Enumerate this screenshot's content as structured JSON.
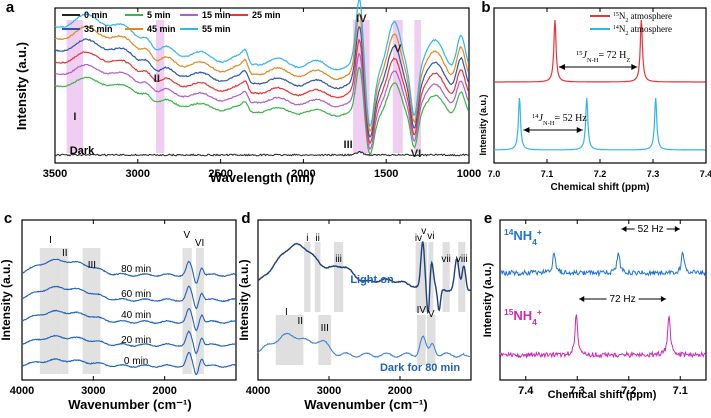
{
  "panels": {
    "a": {
      "letter": "a",
      "type": "line",
      "xlabel": "Wavelength (nm)",
      "ylabel": "Intensity (a.u.)",
      "xlim": [
        3500,
        1000
      ],
      "xticks": [
        "3500",
        "3000",
        "2500",
        "2000",
        "1500",
        "1000"
      ],
      "legend": [
        "0 min",
        "5 min",
        "15 min",
        "25 min",
        "35 min",
        "45 min",
        "55 min"
      ],
      "colors": [
        "#222222",
        "#3bb54a",
        "#b05fc6",
        "#e8333a",
        "#2e57a8",
        "#e08a1e",
        "#32b6ea"
      ],
      "dark_label": "Dark",
      "peak_labels": [
        "I",
        "II",
        "III",
        "IV",
        "V",
        "VI"
      ]
    },
    "b": {
      "letter": "b",
      "type": "line",
      "xlabel": "Chemical shift (ppm)",
      "ylabel": "Intensity (a.u.)",
      "xlim": [
        7.0,
        7.4
      ],
      "xticks": [
        "7.0",
        "7.1",
        "7.2",
        "7.3",
        "7.4"
      ],
      "legend": [
        "15N2 atmosphere",
        "14N2 atmosphere"
      ],
      "colors": [
        "#e8333a",
        "#32b6ea"
      ],
      "j15": "15JN-H= 72 Hz",
      "j14": "14JN-H= 52 Hz",
      "peaks15": [
        7.115,
        7.278
      ],
      "peaks14": [
        7.048,
        7.175,
        7.305
      ]
    },
    "c": {
      "letter": "c",
      "type": "line",
      "xlabel": "Wavenumber (cm⁻¹)",
      "ylabel": "Intensity (a.u.)",
      "xlim": [
        4000,
        1000
      ],
      "xticks": [
        "4000",
        "3000",
        "2000"
      ],
      "series_labels": [
        "80 min",
        "60 min",
        "40 min",
        "20 min",
        "0 min"
      ],
      "peak_labels": [
        "I",
        "II",
        "III",
        "V",
        "VI"
      ]
    },
    "d": {
      "letter": "d",
      "type": "line",
      "xlabel": "Wavenumber (cm⁻¹)",
      "ylabel": "Intensity (a.u.)",
      "xlim": [
        4000,
        1000
      ],
      "xticks": [
        "4000",
        "3000",
        "2000"
      ],
      "light_label": "Light on",
      "dark_label": "Dark for 80 min",
      "peak_labels_upper": [
        "i",
        "ii",
        "iii",
        "iv",
        "v",
        "vi",
        "vii",
        "viii"
      ],
      "peak_labels_lower": [
        "I",
        "II",
        "III",
        "IV",
        "V"
      ]
    },
    "e": {
      "letter": "e",
      "type": "line",
      "xlabel": "Chemical shift (ppm)",
      "ylabel": "Intensity (a.u.)",
      "xlim": [
        7.45,
        7.05
      ],
      "xticks": [
        "7.4",
        "7.3",
        "7.2",
        "7.1"
      ],
      "label14": "14NH4+",
      "label15": "15NH4+",
      "j14": "52 Hz",
      "j15": "72 Hz",
      "peaks14": [
        7.345,
        7.22,
        7.095
      ],
      "peaks15": [
        7.302,
        7.122
      ],
      "color14": "#1f72d6",
      "color15": "#cc2bb6"
    }
  },
  "chart_data": [
    {
      "type": "line",
      "title": "a",
      "xlabel": "Wavelength (nm)",
      "ylabel": "Intensity (a.u.)",
      "xlim": [
        3500,
        1000
      ],
      "series": [
        {
          "name": "0 min"
        },
        {
          "name": "5 min"
        },
        {
          "name": "15 min"
        },
        {
          "name": "25 min"
        },
        {
          "name": "35 min"
        },
        {
          "name": "45 min"
        },
        {
          "name": "55 min"
        }
      ]
    },
    {
      "type": "line",
      "title": "b",
      "xlabel": "Chemical shift (ppm)",
      "ylabel": "Intensity (a.u.)",
      "xlim": [
        7.0,
        7.4
      ],
      "series": [
        {
          "name": "15N2 atmosphere",
          "peaks_ppm": [
            7.115,
            7.278
          ],
          "coupling_Hz": 72
        },
        {
          "name": "14N2 atmosphere",
          "peaks_ppm": [
            7.048,
            7.175,
            7.305
          ],
          "coupling_Hz": 52
        }
      ]
    },
    {
      "type": "line",
      "title": "c",
      "xlabel": "Wavenumber (cm-1)",
      "ylabel": "Intensity (a.u.)",
      "xlim": [
        4000,
        1000
      ],
      "series": [
        {
          "name": "0 min"
        },
        {
          "name": "20 min"
        },
        {
          "name": "40 min"
        },
        {
          "name": "60 min"
        },
        {
          "name": "80 min"
        }
      ]
    },
    {
      "type": "line",
      "title": "d",
      "xlabel": "Wavenumber (cm-1)",
      "ylabel": "Intensity (a.u.)",
      "xlim": [
        4000,
        1000
      ],
      "series": [
        {
          "name": "Light on"
        },
        {
          "name": "Dark for 80 min"
        }
      ]
    },
    {
      "type": "line",
      "title": "e",
      "xlabel": "Chemical shift (ppm)",
      "ylabel": "Intensity (a.u.)",
      "xlim": [
        7.45,
        7.05
      ],
      "series": [
        {
          "name": "14NH4+",
          "peaks_ppm": [
            7.345,
            7.22,
            7.095
          ],
          "coupling_Hz": 52
        },
        {
          "name": "15NH4+",
          "peaks_ppm": [
            7.302,
            7.122
          ],
          "coupling_Hz": 72
        }
      ]
    }
  ]
}
